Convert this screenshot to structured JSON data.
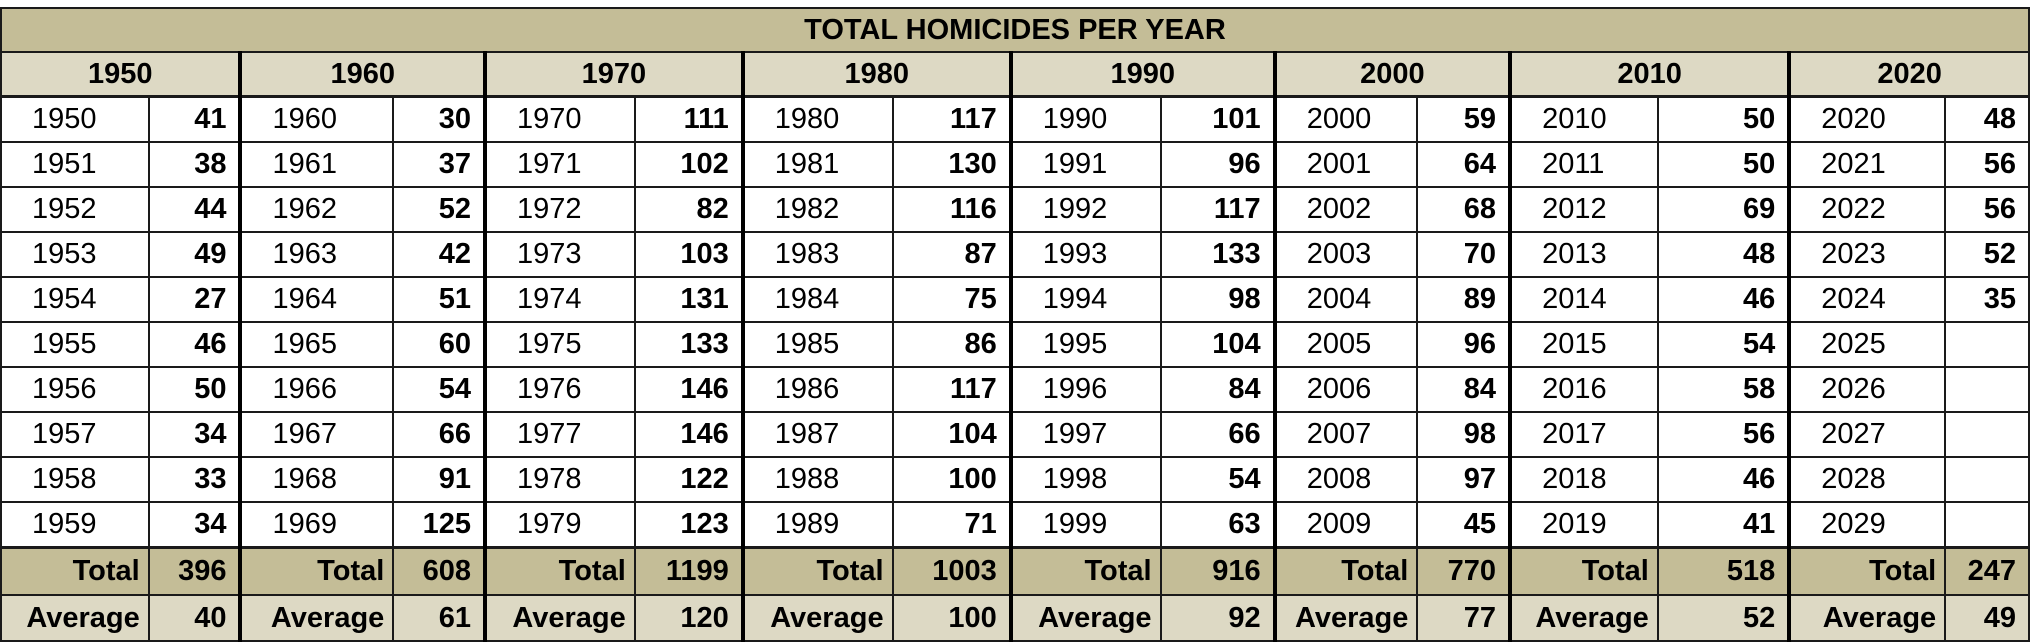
{
  "title": "TOTAL HOMICIDES PER YEAR",
  "total_label": "Total",
  "average_label": "Average",
  "decades": [
    {
      "label": "1950",
      "rows": [
        {
          "year": "1950",
          "count": "41"
        },
        {
          "year": "1951",
          "count": "38"
        },
        {
          "year": "1952",
          "count": "44"
        },
        {
          "year": "1953",
          "count": "49"
        },
        {
          "year": "1954",
          "count": "27"
        },
        {
          "year": "1955",
          "count": "46"
        },
        {
          "year": "1956",
          "count": "50"
        },
        {
          "year": "1957",
          "count": "34"
        },
        {
          "year": "1958",
          "count": "33"
        },
        {
          "year": "1959",
          "count": "34"
        }
      ],
      "total": "396",
      "average": "40"
    },
    {
      "label": "1960",
      "rows": [
        {
          "year": "1960",
          "count": "30"
        },
        {
          "year": "1961",
          "count": "37"
        },
        {
          "year": "1962",
          "count": "52"
        },
        {
          "year": "1963",
          "count": "42"
        },
        {
          "year": "1964",
          "count": "51"
        },
        {
          "year": "1965",
          "count": "60"
        },
        {
          "year": "1966",
          "count": "54"
        },
        {
          "year": "1967",
          "count": "66"
        },
        {
          "year": "1968",
          "count": "91"
        },
        {
          "year": "1969",
          "count": "125"
        }
      ],
      "total": "608",
      "average": "61"
    },
    {
      "label": "1970",
      "rows": [
        {
          "year": "1970",
          "count": "111"
        },
        {
          "year": "1971",
          "count": "102"
        },
        {
          "year": "1972",
          "count": "82"
        },
        {
          "year": "1973",
          "count": "103"
        },
        {
          "year": "1974",
          "count": "131"
        },
        {
          "year": "1975",
          "count": "133"
        },
        {
          "year": "1976",
          "count": "146"
        },
        {
          "year": "1977",
          "count": "146"
        },
        {
          "year": "1978",
          "count": "122"
        },
        {
          "year": "1979",
          "count": "123"
        }
      ],
      "total": "1199",
      "average": "120"
    },
    {
      "label": "1980",
      "rows": [
        {
          "year": "1980",
          "count": "117"
        },
        {
          "year": "1981",
          "count": "130"
        },
        {
          "year": "1982",
          "count": "116"
        },
        {
          "year": "1983",
          "count": "87"
        },
        {
          "year": "1984",
          "count": "75"
        },
        {
          "year": "1985",
          "count": "86"
        },
        {
          "year": "1986",
          "count": "117"
        },
        {
          "year": "1987",
          "count": "104"
        },
        {
          "year": "1988",
          "count": "100"
        },
        {
          "year": "1989",
          "count": "71"
        }
      ],
      "total": "1003",
      "average": "100"
    },
    {
      "label": "1990",
      "rows": [
        {
          "year": "1990",
          "count": "101"
        },
        {
          "year": "1991",
          "count": "96"
        },
        {
          "year": "1992",
          "count": "117"
        },
        {
          "year": "1993",
          "count": "133"
        },
        {
          "year": "1994",
          "count": "98"
        },
        {
          "year": "1995",
          "count": "104"
        },
        {
          "year": "1996",
          "count": "84"
        },
        {
          "year": "1997",
          "count": "66"
        },
        {
          "year": "1998",
          "count": "54"
        },
        {
          "year": "1999",
          "count": "63"
        }
      ],
      "total": "916",
      "average": "92"
    },
    {
      "label": "2000",
      "rows": [
        {
          "year": "2000",
          "count": "59"
        },
        {
          "year": "2001",
          "count": "64"
        },
        {
          "year": "2002",
          "count": "68"
        },
        {
          "year": "2003",
          "count": "70"
        },
        {
          "year": "2004",
          "count": "89"
        },
        {
          "year": "2005",
          "count": "96"
        },
        {
          "year": "2006",
          "count": "84"
        },
        {
          "year": "2007",
          "count": "98"
        },
        {
          "year": "2008",
          "count": "97"
        },
        {
          "year": "2009",
          "count": "45"
        }
      ],
      "total": "770",
      "average": "77"
    },
    {
      "label": "2010",
      "rows": [
        {
          "year": "2010",
          "count": "50"
        },
        {
          "year": "2011",
          "count": "50"
        },
        {
          "year": "2012",
          "count": "69"
        },
        {
          "year": "2013",
          "count": "48"
        },
        {
          "year": "2014",
          "count": "46"
        },
        {
          "year": "2015",
          "count": "54"
        },
        {
          "year": "2016",
          "count": "58"
        },
        {
          "year": "2017",
          "count": "56"
        },
        {
          "year": "2018",
          "count": "46"
        },
        {
          "year": "2019",
          "count": "41"
        }
      ],
      "total": "518",
      "average": "52"
    },
    {
      "label": "2020",
      "rows": [
        {
          "year": "2020",
          "count": "48"
        },
        {
          "year": "2021",
          "count": "56"
        },
        {
          "year": "2022",
          "count": "56"
        },
        {
          "year": "2023",
          "count": "52"
        },
        {
          "year": "2024",
          "count": "35"
        },
        {
          "year": "2025",
          "count": ""
        },
        {
          "year": "2026",
          "count": ""
        },
        {
          "year": "2027",
          "count": ""
        },
        {
          "year": "2028",
          "count": ""
        },
        {
          "year": "2029",
          "count": ""
        }
      ],
      "total": "247",
      "average": "49"
    }
  ]
}
